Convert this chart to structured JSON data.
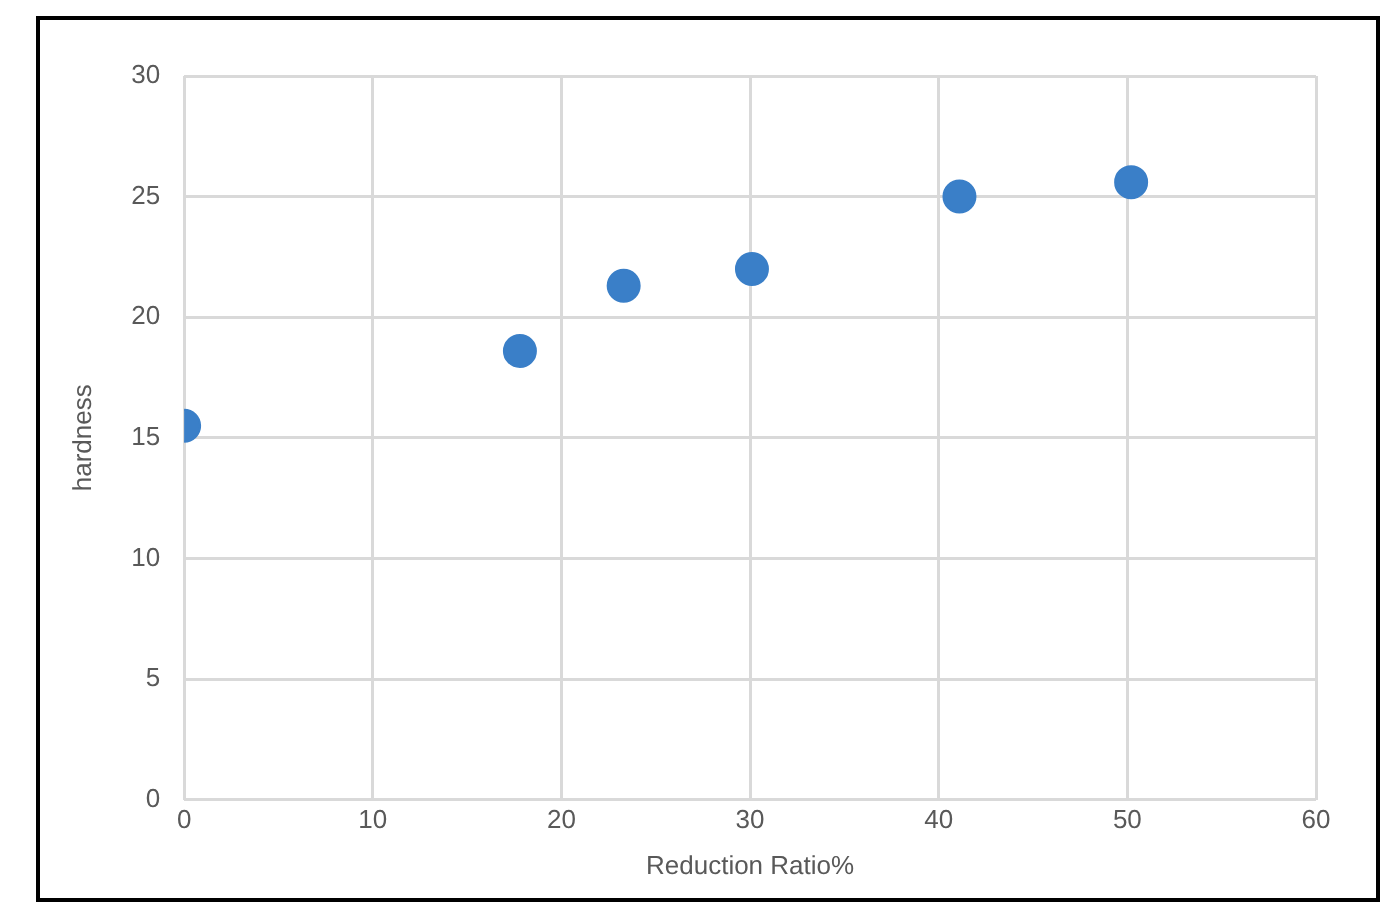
{
  "chart_data": {
    "type": "scatter",
    "xlabel": "Reduction Ratio%",
    "ylabel": "hardness",
    "x": [
      0,
      17.8,
      23.3,
      30.1,
      41.1,
      50.2
    ],
    "series": [
      {
        "color": "#3a7fc8",
        "values": [
          15.5,
          18.6,
          21.3,
          22.0,
          25.0,
          25.6
        ]
      }
    ],
    "xlim": [
      0,
      60
    ],
    "xticks": [
      0,
      10,
      20,
      30,
      40,
      50,
      60
    ],
    "ylim": [
      0,
      30
    ],
    "yticks": [
      0,
      5,
      10,
      15,
      20,
      25,
      30
    ],
    "grid": true,
    "legend": false,
    "marker": "circle"
  }
}
